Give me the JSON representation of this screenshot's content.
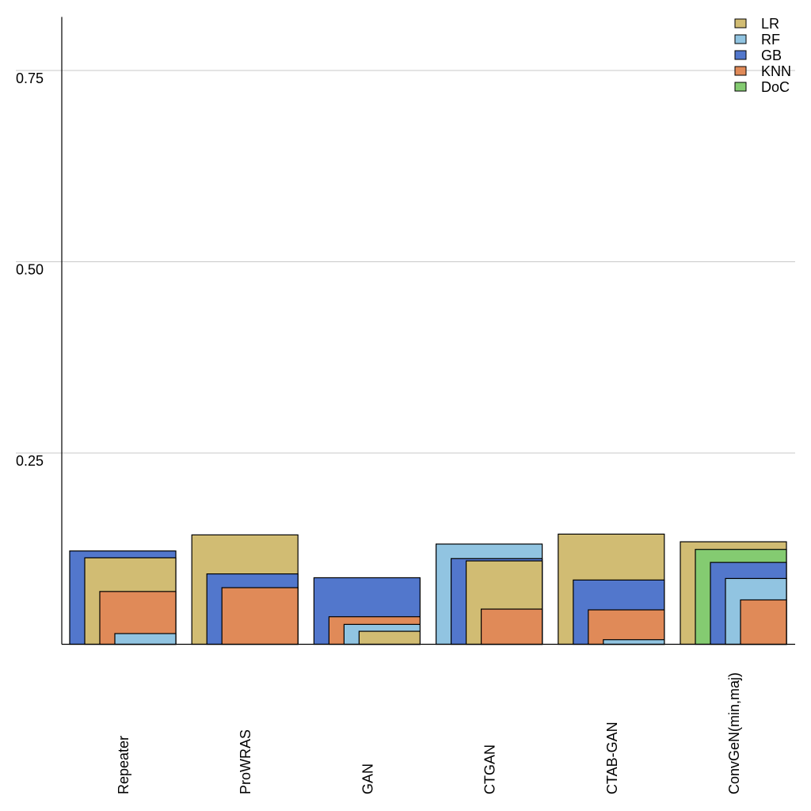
{
  "chart_data": {
    "type": "bar",
    "subtype": "nested-overlapping-bars",
    "title": "",
    "xlabel": "",
    "ylabel": "",
    "ylim": [
      0,
      0.82
    ],
    "yticks": [
      0.25,
      0.5,
      0.75
    ],
    "ytick_labels": [
      "0.25",
      "0.50",
      "0.75"
    ],
    "grid": "horizontal",
    "legend_position": "top-right",
    "categories": [
      "Repeater",
      "ProWRAS",
      "GAN",
      "CTGAN",
      "CTAB-GAN",
      "ConvGeN(min,maj)"
    ],
    "series": [
      {
        "name": "LR",
        "color": "#d1bc73",
        "values": [
          0.113,
          0.143,
          0.017,
          0.109,
          0.144,
          0.134
        ]
      },
      {
        "name": "RF",
        "color": "#91c4e1",
        "values": [
          0.014,
          0.0,
          0.026,
          0.131,
          0.006,
          0.086
        ]
      },
      {
        "name": "GB",
        "color": "#5277cc",
        "values": [
          0.122,
          0.092,
          0.087,
          0.112,
          0.084,
          0.107
        ]
      },
      {
        "name": "KNN",
        "color": "#e08a58",
        "values": [
          0.069,
          0.074,
          0.036,
          0.046,
          0.045,
          0.058
        ]
      },
      {
        "name": "DoC",
        "color": "#84cb71",
        "values": [
          0.0,
          0.0,
          0.0,
          0.0,
          0.0,
          0.124
        ]
      }
    ]
  }
}
